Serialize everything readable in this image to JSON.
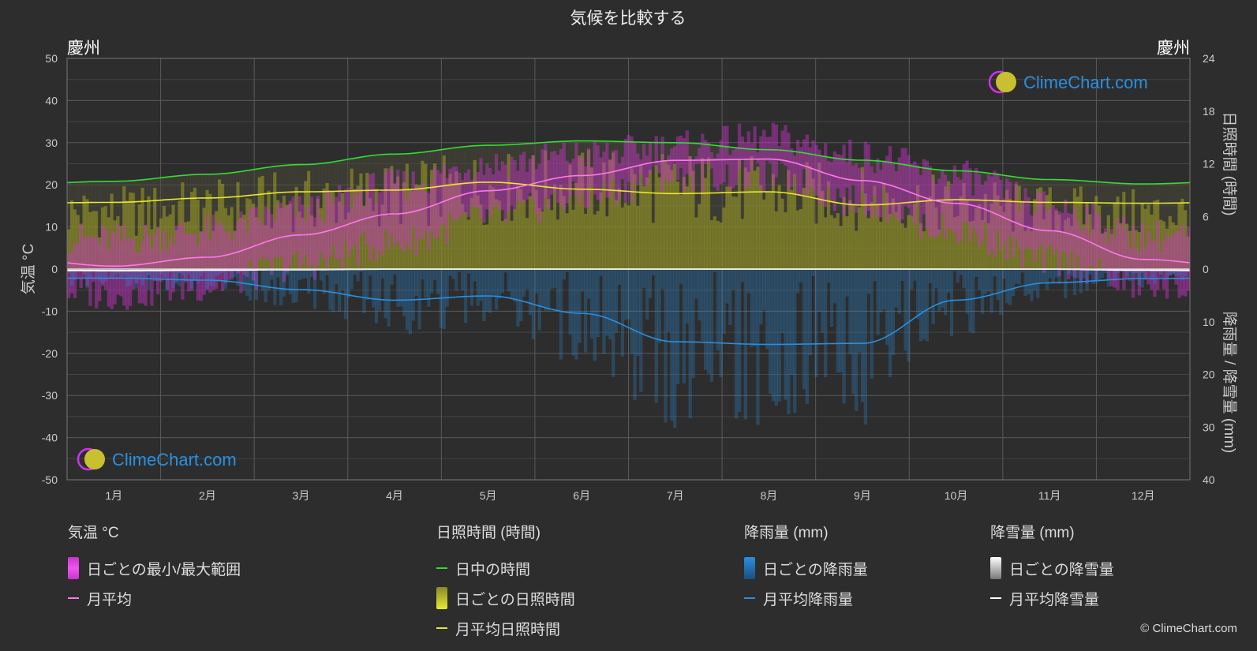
{
  "chart_data": {
    "type": "area",
    "title": "気候を比較する",
    "location_left": "慶州",
    "location_right": "慶州",
    "brand": "ClimeChart.com",
    "copyright": "© ClimeChart.com",
    "months": [
      "1月",
      "2月",
      "3月",
      "4月",
      "5月",
      "6月",
      "7月",
      "8月",
      "9月",
      "10月",
      "11月",
      "12月"
    ],
    "y_left": {
      "label": "気温 °C",
      "min": -50,
      "max": 50,
      "ticks": [
        50,
        40,
        30,
        20,
        10,
        0,
        -10,
        -20,
        -30,
        -40,
        -50
      ]
    },
    "y_right_top": {
      "label": "日照時間 (時間)",
      "min": 0,
      "max": 24,
      "ticks": [
        24,
        18,
        12,
        6,
        0
      ]
    },
    "y_right_bottom": {
      "label": "降雨量 / 降雪量 (mm)",
      "min": 0,
      "max": 40,
      "ticks": [
        10,
        20,
        30,
        40
      ]
    },
    "series": {
      "daylight_hours": [
        10.0,
        10.8,
        11.9,
        13.1,
        14.1,
        14.6,
        14.4,
        13.6,
        12.4,
        11.2,
        10.2,
        9.7
      ],
      "sunshine_hours": [
        7.6,
        8.1,
        8.8,
        9.0,
        9.9,
        9.1,
        8.6,
        8.8,
        7.3,
        7.9,
        7.6,
        7.5
      ],
      "temp_mean": [
        0.7,
        2.8,
        8.1,
        13.1,
        18.6,
        22.2,
        25.8,
        26.1,
        21.0,
        15.6,
        9.1,
        2.3
      ],
      "temp_max_avg": [
        7,
        9,
        14,
        20,
        25,
        27,
        29,
        31,
        27,
        22,
        15,
        8
      ],
      "temp_min_avg": [
        -6,
        -4,
        1,
        6,
        12,
        17,
        22,
        22,
        16,
        9,
        2,
        -4
      ],
      "rain_mean_mm": [
        1.7,
        2.1,
        3.9,
        5.9,
        5.1,
        8.4,
        13.8,
        14.3,
        14.1,
        5.9,
        2.6,
        1.8
      ],
      "snow_mean_mm": [
        0.3,
        0.2,
        0.1,
        0,
        0,
        0,
        0,
        0,
        0,
        0,
        0,
        0.2
      ]
    },
    "colors": {
      "background": "#2d2d2d",
      "grid": "#555555",
      "daylight": "#33dd33",
      "sunshine": "#e8e830",
      "sunshine_fill": "#8a8a2a",
      "temp_range": "#cc33cc",
      "temp_mean": "#ff77ee",
      "rain": "#2a8fdf",
      "snow": "#ffffff"
    }
  },
  "legend": {
    "temperature": {
      "title": "気温 °C",
      "items": [
        "日ごとの最小/最大範囲",
        "月平均"
      ]
    },
    "sunshine": {
      "title": "日照時間 (時間)",
      "items": [
        "日中の時間",
        "日ごとの日照時間",
        "月平均日照時間"
      ]
    },
    "rain": {
      "title": "降雨量 (mm)",
      "items": [
        "日ごとの降雨量",
        "月平均降雨量"
      ]
    },
    "snow": {
      "title": "降雪量 (mm)",
      "items": [
        "日ごとの降雪量",
        "月平均降雪量"
      ]
    }
  }
}
